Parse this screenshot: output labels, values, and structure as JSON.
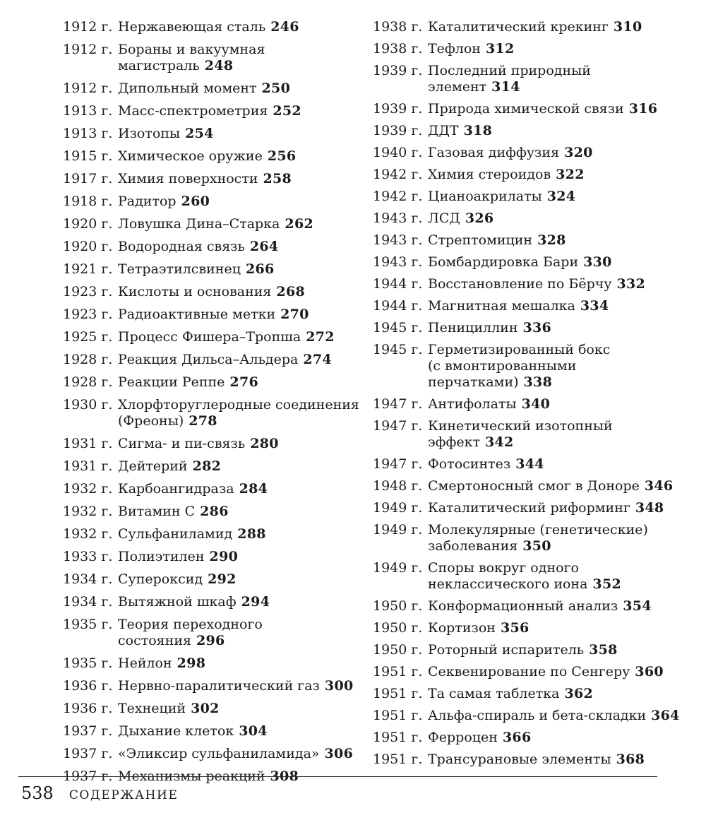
{
  "colors": {
    "background": "#ffffff",
    "text": "#1b1b1b",
    "rule": "#2e2e2e"
  },
  "footer": {
    "folio": "538",
    "section_title": "СОДЕРЖАНИЕ"
  },
  "toc": {
    "columns": [
      {
        "entries": [
          {
            "year": "1912 г.",
            "title": "Нержавеющая сталь",
            "page": "246"
          },
          {
            "year": "1912 г.",
            "title": "Бораны и вакуумная\nмагистраль",
            "page": "248"
          },
          {
            "year": "1912 г.",
            "title": "Дипольный момент",
            "page": "250"
          },
          {
            "year": "1913 г.",
            "title": "Масс-спектрометрия",
            "page": "252"
          },
          {
            "year": "1913 г.",
            "title": "Изотопы",
            "page": "254"
          },
          {
            "year": "1915 г.",
            "title": "Химическое оружие",
            "page": "256"
          },
          {
            "year": "1917 г.",
            "title": "Химия поверхности",
            "page": "258"
          },
          {
            "year": "1918 г.",
            "title": "Радитор",
            "page": "260"
          },
          {
            "year": "1920 г.",
            "title": "Ловушка Дина–Старка",
            "page": "262"
          },
          {
            "year": "1920 г.",
            "title": "Водородная связь",
            "page": "264"
          },
          {
            "year": "1921 г.",
            "title": "Тетраэтилсвинец",
            "page": "266"
          },
          {
            "year": "1923 г.",
            "title": "Кислоты и основания",
            "page": "268"
          },
          {
            "year": "1923 г.",
            "title": "Радиоактивные метки",
            "page": "270"
          },
          {
            "year": "1925 г.",
            "title": "Процесс Фишера–Тропша",
            "page": "272"
          },
          {
            "year": "1928 г.",
            "title": "Реакция Дильса–Альдера",
            "page": "274"
          },
          {
            "year": "1928 г.",
            "title": "Реакции Реппе",
            "page": "276"
          },
          {
            "year": "1930 г.",
            "title": "Хлорфторуглеродные соединения\n(Фреоны)",
            "page": "278"
          },
          {
            "year": "1931 г.",
            "title": "Сигма- и пи-связь",
            "page": "280"
          },
          {
            "year": "1931 г.",
            "title": "Дейтерий",
            "page": "282"
          },
          {
            "year": "1932 г.",
            "title": "Карбоангидраза",
            "page": "284"
          },
          {
            "year": "1932 г.",
            "title": "Витамин C",
            "page": "286"
          },
          {
            "year": "1932 г.",
            "title": "Сульфаниламид",
            "page": "288"
          },
          {
            "year": "1933 г.",
            "title": "Полиэтилен",
            "page": "290"
          },
          {
            "year": "1934 г.",
            "title": "Супероксид",
            "page": "292"
          },
          {
            "year": "1934 г.",
            "title": "Вытяжной шкаф",
            "page": "294"
          },
          {
            "year": "1935 г.",
            "title": "Теория переходного состояния",
            "page": "296"
          },
          {
            "year": "1935 г.",
            "title": "Нейлон",
            "page": "298"
          },
          {
            "year": "1936 г.",
            "title": "Нервно-паралитический газ",
            "page": "300"
          },
          {
            "year": "1936 г.",
            "title": "Технеций",
            "page": "302"
          },
          {
            "year": "1937 г.",
            "title": "Дыхание клеток",
            "page": "304"
          },
          {
            "year": "1937 г.",
            "title": "«Эликсир сульфаниламида»",
            "page": "306"
          },
          {
            "year": "1937 г.",
            "title": "Механизмы реакций",
            "page": "308"
          }
        ]
      },
      {
        "entries": [
          {
            "year": "1938 г.",
            "title": "Каталитический крекинг",
            "page": "310"
          },
          {
            "year": "1938 г.",
            "title": "Тефлон",
            "page": "312"
          },
          {
            "year": "1939 г.",
            "title": "Последний природный\nэлемент",
            "page": "314"
          },
          {
            "year": "1939 г.",
            "title": "Природа химической связи",
            "page": "316"
          },
          {
            "year": "1939 г.",
            "title": "ДДТ",
            "page": "318"
          },
          {
            "year": "1940 г.",
            "title": "Газовая диффузия",
            "page": "320"
          },
          {
            "year": "1942 г.",
            "title": "Химия стероидов",
            "page": "322"
          },
          {
            "year": "1942 г.",
            "title": "Цианоакрилаты",
            "page": "324"
          },
          {
            "year": "1943 г.",
            "title": "ЛСД",
            "page": "326"
          },
          {
            "year": "1943 г.",
            "title": "Стрептомицин",
            "page": "328"
          },
          {
            "year": "1943 г.",
            "title": "Бомбардировка Бари",
            "page": "330"
          },
          {
            "year": "1944 г.",
            "title": "Восстановление по Бёрчу",
            "page": "332"
          },
          {
            "year": "1944 г.",
            "title": "Магнитная мешалка",
            "page": "334"
          },
          {
            "year": "1945 г.",
            "title": "Пенициллин",
            "page": "336"
          },
          {
            "year": "1945 г.",
            "title": "Герметизированный бокс\n(с вмонтированными\nперчатками)",
            "page": "338"
          },
          {
            "year": "1947 г.",
            "title": "Антифолаты",
            "page": "340"
          },
          {
            "year": "1947 г.",
            "title": "Кинетический изотопный\nэффект",
            "page": "342"
          },
          {
            "year": "1947 г.",
            "title": "Фотосинтез",
            "page": "344"
          },
          {
            "year": "1948 г.",
            "title": "Смертоносный смог в Доноре",
            "page": "346"
          },
          {
            "year": "1949 г.",
            "title": "Каталитический риформинг",
            "page": "348"
          },
          {
            "year": "1949 г.",
            "title": "Молекулярные (генетические)\nзаболевания",
            "page": "350"
          },
          {
            "year": "1949 г.",
            "title": "Споры вокруг одного\nнеклассического иона",
            "page": "352"
          },
          {
            "year": "1950 г.",
            "title": "Конформационный анализ",
            "page": "354"
          },
          {
            "year": "1950 г.",
            "title": "Кортизон",
            "page": "356"
          },
          {
            "year": "1950 г.",
            "title": "Роторный испаритель",
            "page": "358"
          },
          {
            "year": "1951 г.",
            "title": "Секвенирование по Сенгеру",
            "page": "360"
          },
          {
            "year": "1951 г.",
            "title": "Та самая таблетка",
            "page": "362"
          },
          {
            "year": "1951 г.",
            "title": "Альфа-спираль и бета-складки",
            "page": "364"
          },
          {
            "year": "1951 г.",
            "title": "Ферроцен",
            "page": "366"
          },
          {
            "year": "1951 г.",
            "title": "Трансурановые элементы",
            "page": "368"
          }
        ]
      }
    ]
  }
}
